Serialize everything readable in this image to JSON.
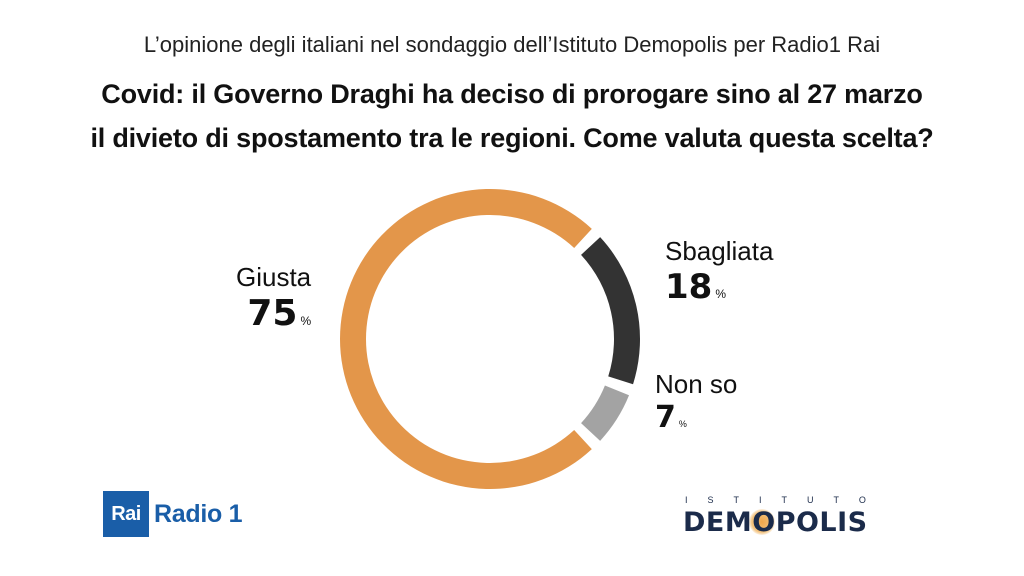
{
  "header": {
    "subtitle": "L’opinione degli italiani nel sondaggio dell’Istituto Demopolis per Radio1 Rai",
    "title_line1": "Covid: il Governo Draghi ha deciso di prorogare sino al 27 marzo",
    "title_line2": "il divieto di spostamento tra le regioni. Come valuta questa scelta?"
  },
  "chart_data": {
    "type": "pie",
    "title": "Covid: il Governo Draghi ha deciso di prorogare sino al 27 marzo il divieto di spostamento tra le regioni. Come valuta questa scelta?",
    "categories": [
      "Giusta",
      "Sbagliata",
      "Non so"
    ],
    "values": [
      75,
      18,
      7
    ],
    "unit": "%",
    "colors": [
      "#e3964a",
      "#333333",
      "#a3a3a3"
    ],
    "labels": [
      {
        "name": "Giusta",
        "value": "75",
        "unit": "%"
      },
      {
        "name": "Sbagliata",
        "value": "18",
        "unit": "%"
      },
      {
        "name": "Non so",
        "value": "7",
        "unit": "%"
      }
    ]
  },
  "logos": {
    "rai": "Rai",
    "radio": "Radio 1",
    "demopolis_top": "ISTITUTO",
    "demopolis_main": "DEMOPOLIS"
  }
}
